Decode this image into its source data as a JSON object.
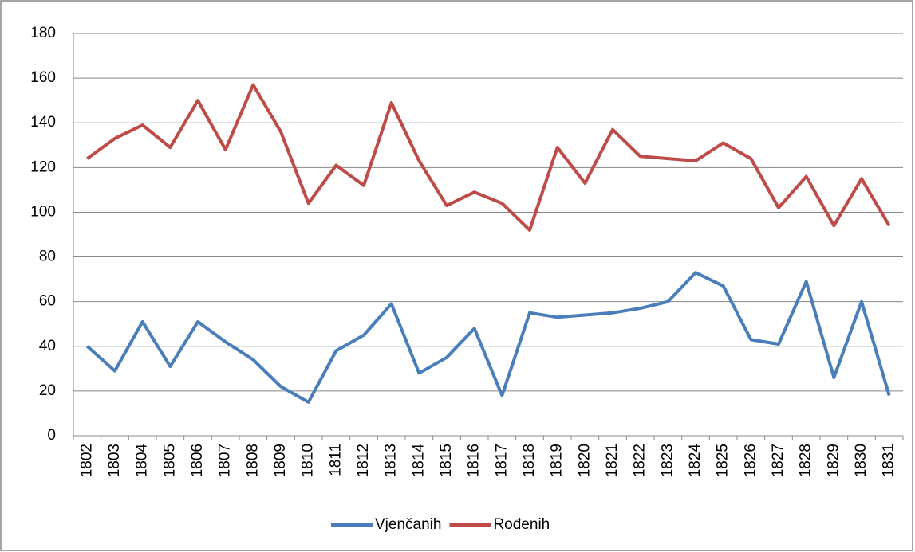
{
  "chart_data": {
    "type": "line",
    "categories": [
      "1802",
      "1803",
      "1804",
      "1805",
      "1806",
      "1807",
      "1808",
      "1809",
      "1810",
      "1811",
      "1812",
      "1813",
      "1814",
      "1815",
      "1816",
      "1817",
      "1818",
      "1819",
      "1820",
      "1821",
      "1822",
      "1823",
      "1824",
      "1825",
      "1826",
      "1827",
      "1828",
      "1829",
      "1830",
      "1831"
    ],
    "series": [
      {
        "name": "Vjenčanih",
        "color": "#4a7ebb",
        "values": [
          40,
          29,
          51,
          31,
          51,
          42,
          34,
          22,
          15,
          38,
          45,
          59,
          28,
          35,
          48,
          18,
          55,
          53,
          54,
          55,
          57,
          60,
          73,
          67,
          43,
          41,
          69,
          26,
          60,
          18
        ]
      },
      {
        "name": "Rođenih",
        "color": "#be4b48",
        "values": [
          124,
          133,
          139,
          129,
          150,
          128,
          157,
          136,
          104,
          121,
          112,
          149,
          123,
          103,
          109,
          104,
          92,
          129,
          113,
          137,
          125,
          124,
          123,
          131,
          124,
          102,
          116,
          94,
          115,
          94
        ]
      }
    ],
    "ylim": [
      0,
      180
    ],
    "yticks": [
      0,
      20,
      40,
      60,
      80,
      100,
      120,
      140,
      160,
      180
    ],
    "grid": true,
    "legend": "bottom"
  }
}
